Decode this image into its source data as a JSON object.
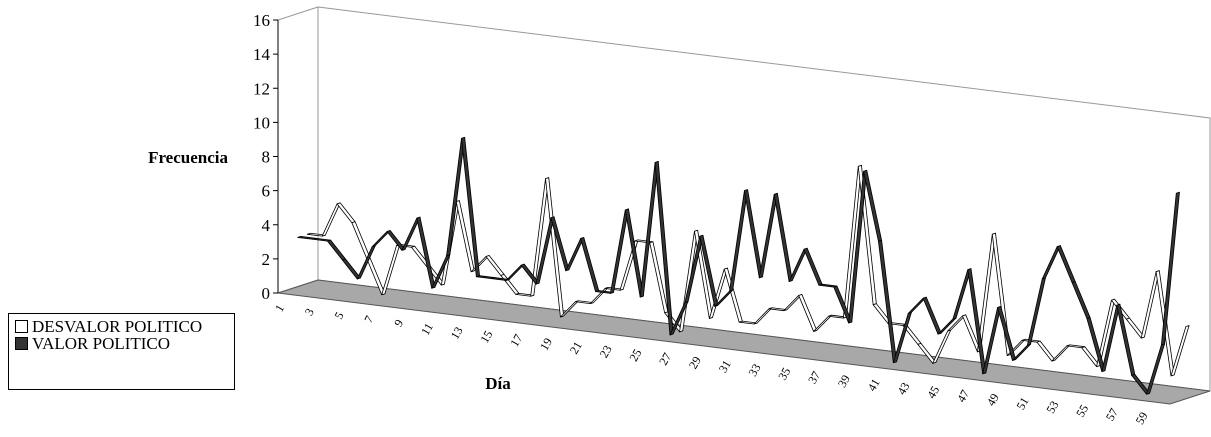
{
  "chart_data": {
    "type": "line",
    "style": "3d-ribbon",
    "ylabel": "Frecuencia",
    "xlabel": "Día",
    "ylim": [
      0,
      16
    ],
    "yticks": [
      0,
      2,
      4,
      6,
      8,
      10,
      12,
      14,
      16
    ],
    "x": [
      1,
      2,
      3,
      4,
      5,
      6,
      7,
      8,
      9,
      10,
      11,
      12,
      13,
      14,
      15,
      16,
      17,
      18,
      19,
      20,
      21,
      22,
      23,
      24,
      25,
      26,
      27,
      28,
      29,
      30,
      31,
      32,
      33,
      34,
      35,
      36,
      37,
      38,
      39,
      40,
      41,
      42,
      43,
      44,
      45,
      46,
      47,
      48,
      49,
      50,
      51,
      52,
      53,
      54,
      55,
      56,
      57,
      58,
      59,
      60
    ],
    "xticks": [
      1,
      3,
      5,
      7,
      9,
      11,
      13,
      15,
      17,
      19,
      21,
      23,
      25,
      27,
      29,
      31,
      33,
      35,
      37,
      39,
      41,
      43,
      45,
      47,
      49,
      51,
      53,
      55,
      57,
      59
    ],
    "legend_position": "left",
    "series": [
      {
        "name": "DESVALOR POLITICO",
        "color": "#ffffff",
        "values": [
          3,
          3,
          5,
          4,
          2,
          0,
          3,
          3,
          2,
          1,
          6,
          2,
          3,
          2,
          1,
          1,
          8,
          0,
          1,
          1,
          2,
          2,
          5,
          5,
          1,
          0,
          6,
          1,
          4,
          1,
          1,
          2,
          2,
          3,
          1,
          2,
          2,
          11,
          3,
          2,
          2,
          1,
          0,
          2,
          3,
          1,
          8,
          1,
          2,
          2,
          1,
          2,
          2,
          1,
          5,
          4,
          3,
          7,
          1,
          4
        ]
      },
      {
        "name": "VALOR POLITICO",
        "color": "#333333",
        "values": [
          3,
          3,
          3,
          2,
          1,
          3,
          4,
          3,
          5,
          1,
          3,
          10,
          2,
          2,
          2,
          3,
          2,
          6,
          3,
          5,
          2,
          2,
          7,
          2,
          10,
          0,
          2,
          6,
          2,
          3,
          9,
          4,
          9,
          4,
          6,
          4,
          4,
          2,
          11,
          7,
          0,
          3,
          4,
          2,
          3,
          6,
          0,
          4,
          1,
          2,
          6,
          8,
          6,
          4,
          1,
          5,
          1,
          0,
          3,
          12
        ]
      }
    ]
  },
  "legend": {
    "item1": "DESVALOR POLITICO",
    "item2": "VALOR POLITICO"
  }
}
